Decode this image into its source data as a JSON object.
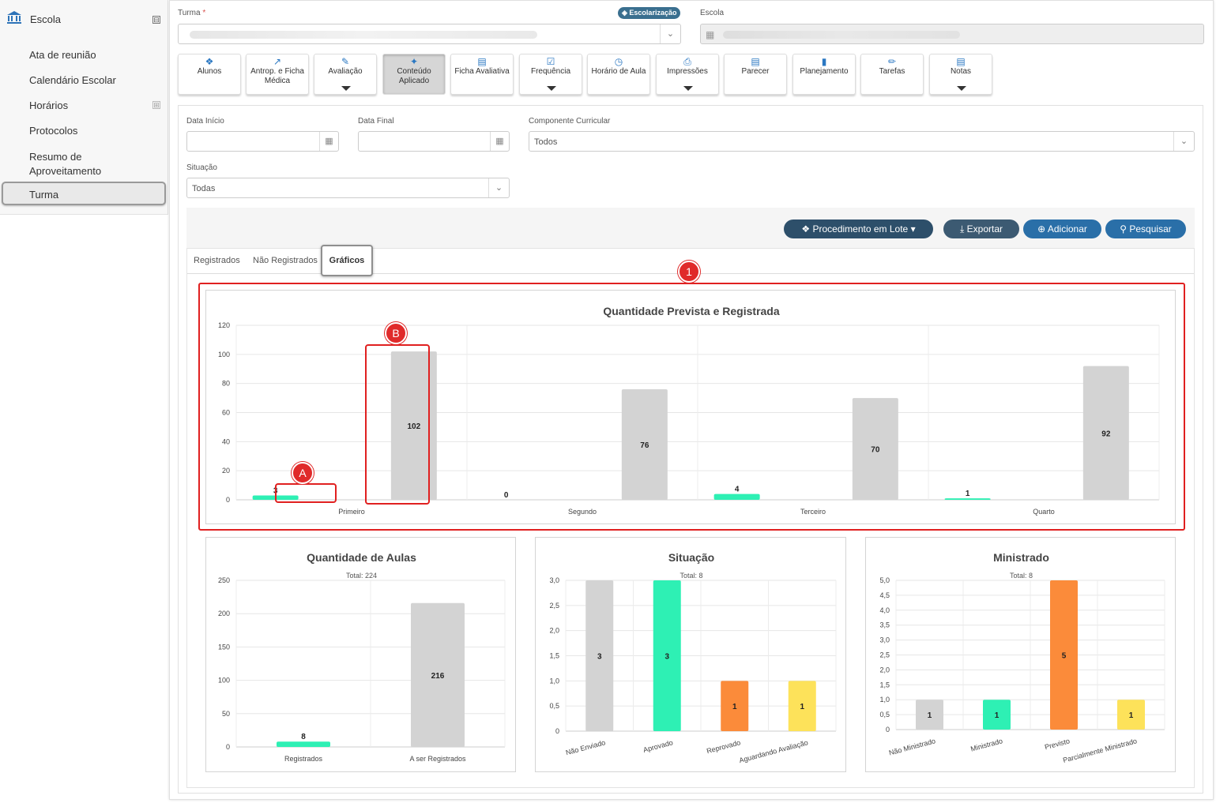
{
  "sidebar": {
    "title": "Escola",
    "collapse_symbol": "⊟",
    "expand_symbol": "⊞",
    "items": [
      {
        "label": "Ata de reunião"
      },
      {
        "label": "Calendário Escolar"
      },
      {
        "label": "Horários"
      },
      {
        "label": "Protocolos"
      },
      {
        "label": "Resumo de Aproveitamento"
      },
      {
        "label": "Turma"
      }
    ]
  },
  "header": {
    "turma_label": "Turma",
    "required_mark": "*",
    "badge": "Escolarização",
    "escola_label": "Escola"
  },
  "toolbar": {
    "buttons": [
      {
        "label": "Alunos",
        "icon": "users-icon"
      },
      {
        "label": "Antrop. e Ficha Médica",
        "icon": "chart-line-icon"
      },
      {
        "label": "Avaliação",
        "icon": "edit-icon"
      },
      {
        "label": "Conteúdo Aplicado",
        "icon": "magic-wand-icon"
      },
      {
        "label": "Ficha Avaliativa",
        "icon": "table-icon"
      },
      {
        "label": "Frequência",
        "icon": "check-square-icon"
      },
      {
        "label": "Horário de Aula",
        "icon": "clock-icon"
      },
      {
        "label": "Impressões",
        "icon": "print-icon"
      },
      {
        "label": "Parecer",
        "icon": "file-icon"
      },
      {
        "label": "Planejamento",
        "icon": "book-icon"
      },
      {
        "label": "Tarefas",
        "icon": "pencil-icon"
      },
      {
        "label": "Notas",
        "icon": "table-icon"
      }
    ]
  },
  "filters": {
    "data_inicio_label": "Data Início",
    "data_final_label": "Data Final",
    "componente_label": "Componente Curricular",
    "componente_value": "Todos",
    "situacao_label": "Situação",
    "situacao_value": "Todas"
  },
  "actions": {
    "lote": "Procedimento em Lote",
    "exportar": "Exportar",
    "adicionar": "Adicionar",
    "pesquisar": "Pesquisar"
  },
  "tabs": {
    "registrados": "Registrados",
    "nao_registrados": "Não Registrados",
    "graficos": "Gráficos"
  },
  "markers": {
    "one": "1",
    "a": "A",
    "b": "B"
  },
  "colors": {
    "green": "#2ef0b4",
    "gray": "#d3d3d3",
    "orange": "#fb8b3a",
    "yellow": "#fde25a",
    "red": "#e02020",
    "blue": "#2a77c2"
  },
  "chart_data": [
    {
      "type": "bar",
      "title": "Quantidade Prevista e Registrada",
      "categories": [
        "Primeiro",
        "Segundo",
        "Terceiro",
        "Quarto"
      ],
      "series": [
        {
          "values": [
            3,
            0,
            4,
            1
          ],
          "color": "#2ef0b4"
        },
        {
          "values": [
            102,
            76,
            70,
            92
          ],
          "color": "#d3d3d3"
        }
      ],
      "ylim": [
        0,
        120
      ],
      "yticks": [
        "0",
        "20",
        "40",
        "60",
        "80",
        "100",
        "120"
      ]
    },
    {
      "type": "bar",
      "title": "Quantidade de Aulas",
      "subtitle": "Total: 224",
      "categories": [
        "Registrados",
        "A ser Registrados"
      ],
      "values": [
        8,
        216
      ],
      "colors": [
        "#2ef0b4",
        "#d3d3d3"
      ],
      "ylim": [
        0,
        250
      ],
      "yticks": [
        "0",
        "50",
        "100",
        "150",
        "200",
        "250"
      ]
    },
    {
      "type": "bar",
      "title": "Situação",
      "subtitle": "Total: 8",
      "categories": [
        "Não Enviado",
        "Aprovado",
        "Reprovado",
        "Aguardando Avaliação"
      ],
      "values": [
        3,
        3,
        1,
        1
      ],
      "colors": [
        "#d3d3d3",
        "#2ef0b4",
        "#fb8b3a",
        "#fde25a"
      ],
      "ylim": [
        0,
        3
      ],
      "yticks": [
        "0",
        "0,5",
        "1,0",
        "1,5",
        "2,0",
        "2,5",
        "3,0"
      ]
    },
    {
      "type": "bar",
      "title": "Ministrado",
      "subtitle": "Total: 8",
      "categories": [
        "Não Ministrado",
        "Ministrado",
        "Previsto",
        "Parcialmente Ministrado"
      ],
      "values": [
        1,
        1,
        5,
        1
      ],
      "colors": [
        "#d3d3d3",
        "#2ef0b4",
        "#fb8b3a",
        "#fde25a"
      ],
      "ylim": [
        0,
        5
      ],
      "yticks": [
        "0",
        "0,5",
        "1,0",
        "1,5",
        "2,0",
        "2,5",
        "3,0",
        "3,5",
        "4,0",
        "4,5",
        "5,0"
      ]
    }
  ]
}
